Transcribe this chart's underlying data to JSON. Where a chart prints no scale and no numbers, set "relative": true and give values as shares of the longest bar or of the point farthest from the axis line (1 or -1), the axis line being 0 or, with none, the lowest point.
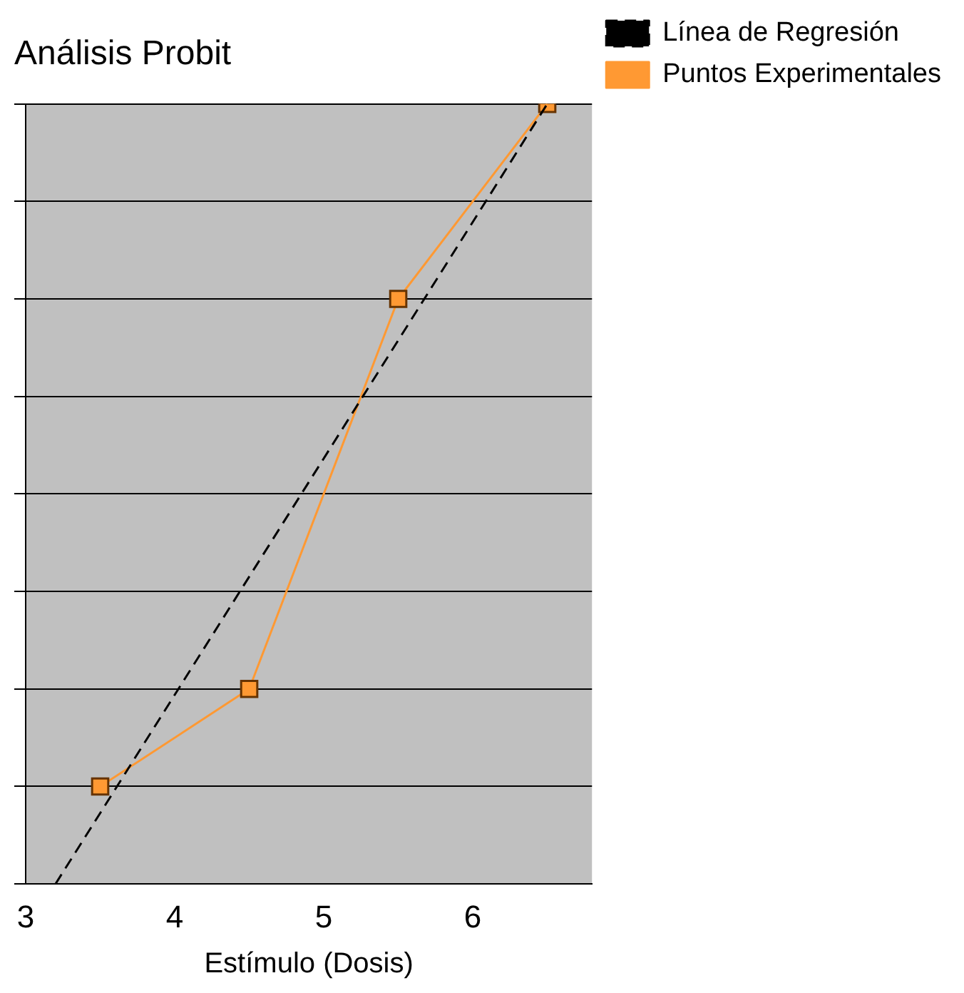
{
  "chart_data": {
    "type": "line",
    "title": "Análisis Probit",
    "xlabel": "Estímulo (Dosis)",
    "relative": true,
    "xlim": [
      3,
      6.8
    ],
    "xticks": [
      3,
      4,
      5,
      6
    ],
    "grid": "y",
    "legend": "top right",
    "series": [
      {
        "name": "Línea de Regresión",
        "color": "#000000",
        "x": [
          3.2,
          6.5
        ],
        "values": [
          0,
          1
        ],
        "marker": "none",
        "line_style": "dashed"
      },
      {
        "name": "Puntos Experimentales",
        "color": "#ff9933",
        "x": [
          3.5,
          4.5,
          5.5,
          6.5
        ],
        "values": [
          0.125,
          0.25,
          0.75,
          1
        ],
        "marker": "square",
        "line_style": "solid"
      }
    ]
  }
}
